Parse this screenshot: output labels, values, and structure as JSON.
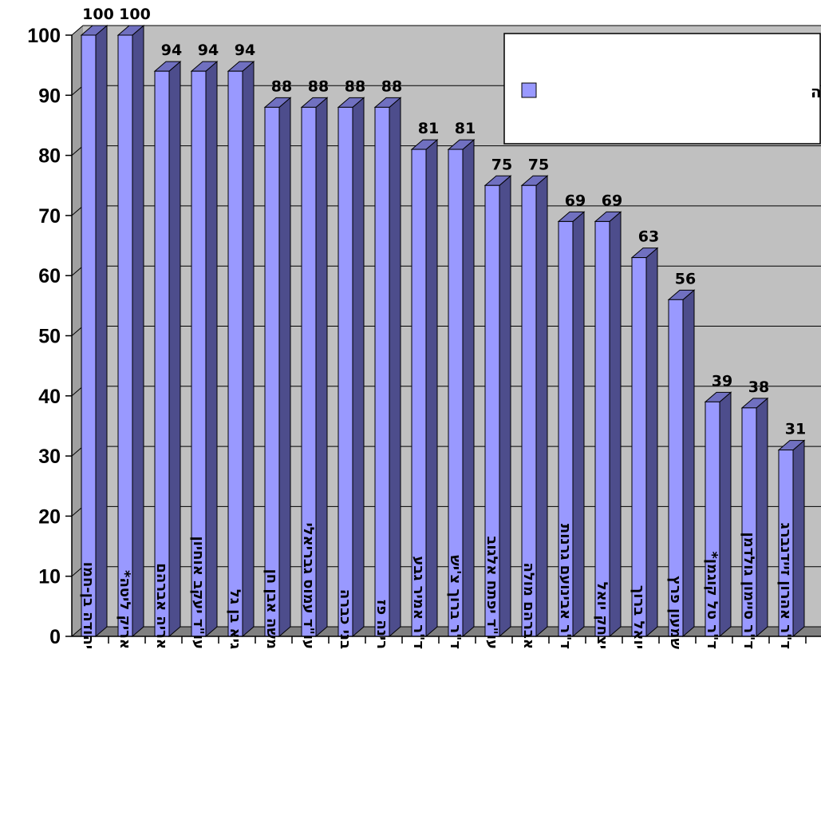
{
  "chart_data": {
    "type": "bar",
    "categories": [
      "יהודה בן-חמו",
      "אריק ליטה*",
      "אריה אברהם",
      "עו\"ד יעקב אוחיון",
      "גיא בן גל",
      "משה אבן חן",
      "עו\"ד עמוס גבריאלי",
      "בני כברה",
      "רינה פז",
      "ד\"ר אמיר גבע",
      "ד\"ר ברוך צ'יש",
      "עו\"ד יפתח אלגוב",
      "אברהם מולה",
      "ד\"ר אבינועם גרנות",
      "יצחק יואל",
      "יואל ברוך",
      "שמעון פרץ",
      "ד\"ר טל קוגמן*",
      "ד\"ר סיימון גולדמן",
      "ד\"ר אהרון זיידנברג"
    ],
    "series": [
      {
        "name": "אחוז נוכחות חבר המועצה",
        "values": [
          100,
          100,
          94,
          94,
          94,
          88,
          88,
          88,
          88,
          81,
          81,
          75,
          75,
          69,
          69,
          63,
          56,
          39,
          38,
          31
        ],
        "color": "#9999ff"
      }
    ],
    "value_labels": [
      "100",
      "100",
      "94",
      "94",
      "94",
      "88",
      "88",
      "88",
      "88",
      "81",
      "81",
      "75",
      "75",
      "69",
      "69",
      "63",
      "56",
      "39",
      "38",
      "31"
    ],
    "y_ticks": [
      "0",
      "10",
      "20",
      "30",
      "40",
      "50",
      "60",
      "70",
      "80",
      "90",
      "100"
    ],
    "ylim": [
      0,
      100
    ],
    "grid": true,
    "style": "3d-bar",
    "legend_position": "top-right",
    "colors": {
      "bar_front": "#9999ff",
      "bar_side": "#4d4d8c",
      "bar_top": "#7070c0",
      "plot_wall": "#c0c0c0",
      "plot_floor": "#808080"
    }
  }
}
